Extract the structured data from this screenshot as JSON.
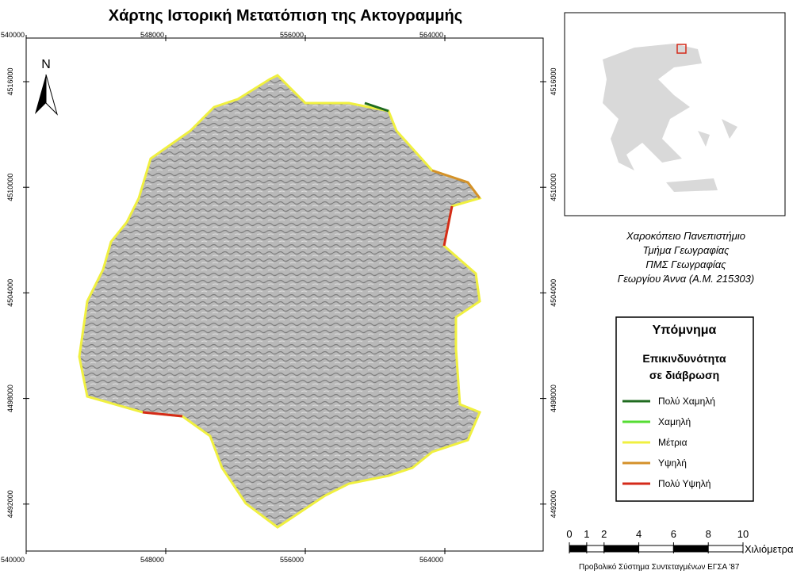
{
  "title": "Χάρτης Ιστορική Μετατόπιση της Ακτογραμμής",
  "north_arrow": "N",
  "graticule": {
    "x_ticks": [
      540000,
      548000,
      556000,
      564000
    ],
    "y_ticks": [
      4516000,
      4510000,
      4504000,
      4498000,
      4492000
    ]
  },
  "credits": [
    "Χαροκόπειο Πανεπιστήμιο",
    "Τμήμα Γεωγραφίας",
    "ΠΜΣ Γεωγραφίας",
    "Γεωργίου Άννα (Α.Μ. 215303)"
  ],
  "legend": {
    "title": "Υπόμνημα",
    "subtitle": [
      "Επικινδυνότητα",
      "σε διάβρωση"
    ],
    "items": [
      {
        "label": "Πολύ Χαμηλή",
        "color": "#1f6b1f"
      },
      {
        "label": "Χαμηλή",
        "color": "#55dd33"
      },
      {
        "label": "Μέτρια",
        "color": "#f0f040"
      },
      {
        "label": "Υψηλή",
        "color": "#d4902a"
      },
      {
        "label": "Πολύ Υψηλή",
        "color": "#d42a1a"
      }
    ]
  },
  "scale_bar": {
    "ticks": [
      0,
      1,
      2,
      4,
      6,
      8,
      10
    ],
    "unit": "Χιλιόμετρα"
  },
  "projection": "Προβολικό Σύστημα Συντεταγμένων ΕΓΣΑ '87"
}
